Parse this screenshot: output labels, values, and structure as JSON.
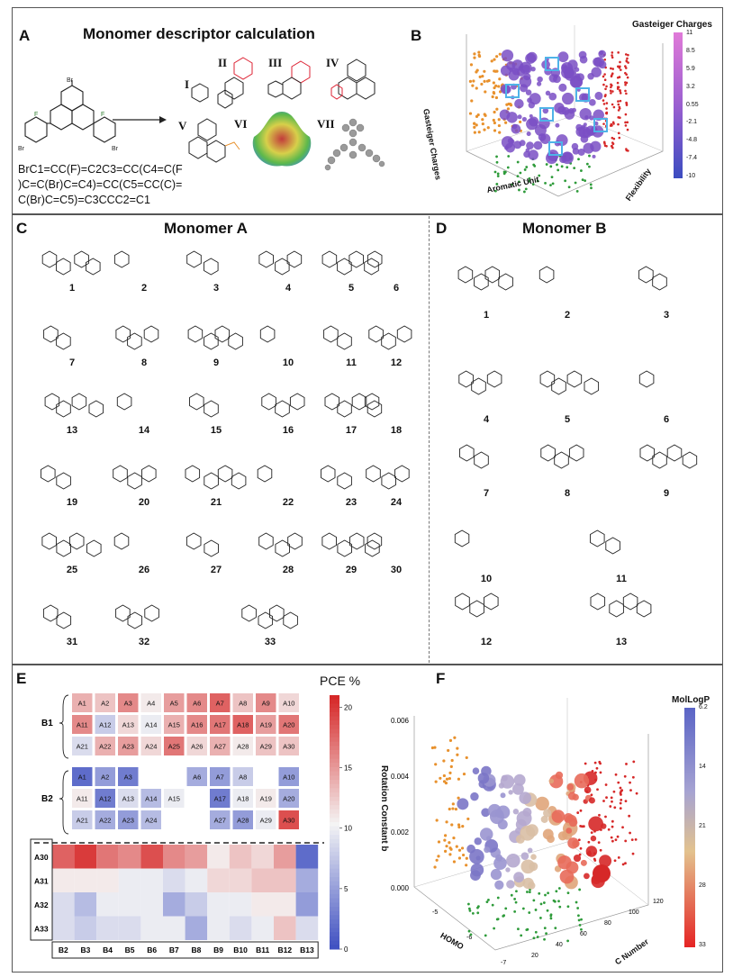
{
  "panelA": {
    "label": "A",
    "title": "Monomer descriptor calculation",
    "smiles": [
      "BrC1=CC(F)=C2C3=CC(C4=C(F",
      ")C=C(Br)C=C4)=CC(C5=CC(C)=",
      "C(Br)C=C5)=C3CCC2=C1"
    ],
    "descriptors": [
      "I",
      "II",
      "III",
      "IV",
      "V",
      "VI",
      "VII"
    ]
  },
  "panelB": {
    "label": "B",
    "colorbar_title": "Gasteiger Charges",
    "colorbar_ticks": [
      "11",
      "8.5",
      "5.9",
      "3.2",
      "0.55",
      "-2.1",
      "-4.8",
      "-7.4",
      "-10"
    ],
    "axis_labels": {
      "z": "Gasteiger Charges",
      "x": "Aromatic Unit",
      "y": "Flexibility"
    }
  },
  "panelC": {
    "label": "C",
    "title": "Monomer A",
    "compounds": [
      "1",
      "2",
      "3",
      "4",
      "5",
      "6",
      "7",
      "8",
      "9",
      "10",
      "11",
      "12",
      "13",
      "14",
      "15",
      "16",
      "17",
      "18",
      "19",
      "20",
      "21",
      "22",
      "23",
      "24",
      "25",
      "26",
      "27",
      "28",
      "29",
      "30",
      "31",
      "32",
      "33"
    ]
  },
  "panelD": {
    "label": "D",
    "title": "Monomer B",
    "compounds": [
      "1",
      "2",
      "3",
      "4",
      "5",
      "6",
      "7",
      "8",
      "9",
      "10",
      "11",
      "12",
      "13"
    ]
  },
  "panelE": {
    "label": "E",
    "colorbar_title": "PCE %",
    "colorbar_ticks": [
      "20",
      "15",
      "10",
      "5",
      "0"
    ],
    "group_labels": [
      "B1",
      "B2"
    ],
    "b1_rows": [
      [
        "A1",
        "A2",
        "A3",
        "A4",
        "A5",
        "A6",
        "A7",
        "A8",
        "A9",
        "A10"
      ],
      [
        "A11",
        "A12",
        "A13",
        "A14",
        "A15",
        "A16",
        "A17",
        "A18",
        "A19",
        "A20"
      ],
      [
        "A21",
        "A22",
        "A23",
        "A24",
        "A25",
        "A26",
        "A27",
        "A28",
        "A29",
        "A30"
      ]
    ],
    "b1_values": [
      [
        14,
        13,
        16,
        11,
        15,
        16,
        18,
        13,
        16,
        12
      ],
      [
        16,
        8,
        12,
        10,
        14,
        16,
        17,
        18,
        15,
        17
      ],
      [
        9,
        14,
        15,
        12,
        17,
        12,
        14,
        11,
        13,
        13
      ]
    ],
    "b2_rows": [
      [
        "A1",
        "A2",
        "A3",
        "",
        "",
        "A6",
        "A7",
        "A8",
        "",
        "A10"
      ],
      [
        "A11",
        "A12",
        "A13",
        "A14",
        "A15",
        "",
        "A17",
        "A18",
        "A19",
        "A20"
      ],
      [
        "A21",
        "A22",
        "A23",
        "A24",
        "",
        "",
        "A27",
        "A28",
        "A29",
        "A30"
      ]
    ],
    "b2_values": [
      [
        2,
        5,
        3,
        null,
        null,
        6,
        5,
        8,
        null,
        5
      ],
      [
        11,
        3,
        9,
        7,
        10,
        null,
        3,
        10,
        11,
        6
      ],
      [
        8,
        6,
        5,
        7,
        null,
        null,
        6,
        5,
        10,
        19
      ]
    ],
    "bottom_rows": [
      "A30",
      "A31",
      "A32",
      "A33"
    ],
    "bottom_cols": [
      "B2",
      "B3",
      "B4",
      "B5",
      "B6",
      "B7",
      "B8",
      "B9",
      "B10",
      "B11",
      "B12",
      "B13"
    ],
    "bottom_values": [
      [
        18,
        20,
        17,
        16,
        19,
        16,
        15,
        11,
        13,
        12,
        15,
        2
      ],
      [
        11,
        11,
        11,
        10,
        10,
        9,
        10,
        12,
        12,
        13,
        13,
        6
      ],
      [
        9,
        7,
        10,
        10,
        10,
        6,
        8,
        10,
        10,
        11,
        11,
        5
      ],
      [
        9,
        8,
        9,
        9,
        10,
        10,
        6,
        10,
        9,
        10,
        13,
        9
      ]
    ]
  },
  "panelF": {
    "label": "F",
    "colorbar_title": "MolLogP",
    "colorbar_ticks": [
      "6.2",
      "14",
      "21",
      "28",
      "33"
    ],
    "axis_labels": {
      "z": "Rotation Constant b",
      "x": "HOMO",
      "y": "C Number"
    },
    "z_ticks": [
      "0.006",
      "0.004",
      "0.002",
      "0.000"
    ],
    "x_ticks": [
      "-5",
      "-6",
      "-7"
    ],
    "y_ticks": [
      "20",
      "40",
      "60",
      "80",
      "100",
      "120"
    ]
  },
  "colors": {
    "blue": "#3b4cc0",
    "white": "#f4f4f4",
    "red": "#d62828",
    "purple": "#7a4fc4",
    "orange": "#e8912d",
    "green": "#2e9b3a",
    "sky": "#4fb3e8"
  }
}
